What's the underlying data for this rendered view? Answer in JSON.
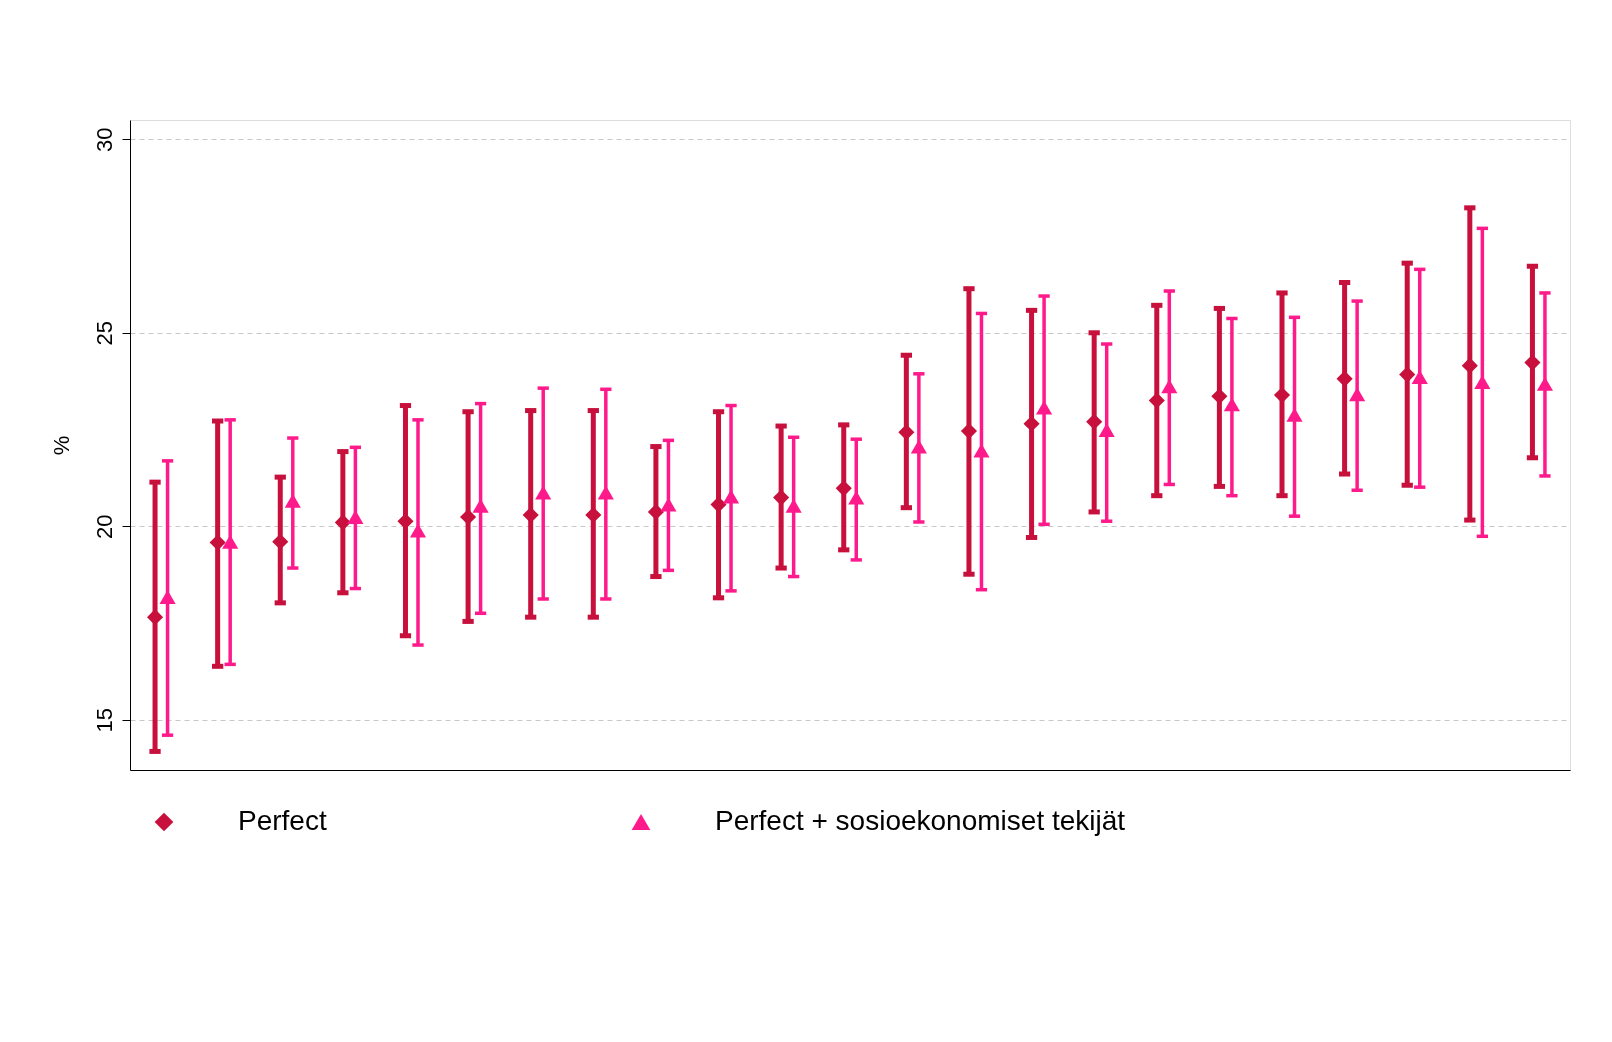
{
  "chart_data": {
    "type": "scatter",
    "ylabel": "%",
    "categories": [
      null,
      null,
      null,
      null,
      null,
      null,
      null,
      null,
      null,
      null,
      null,
      null,
      null,
      null,
      null,
      null,
      null,
      null,
      null,
      null,
      null,
      null,
      null
    ],
    "ylim": [
      13.7,
      30.5
    ],
    "yticks": [
      15,
      20,
      25,
      30
    ],
    "grid": "y",
    "legend": "bottom",
    "tick_labels": "y",
    "series": [
      {
        "name": "Perfect",
        "color": "#c8103c",
        "marker": "diamond",
        "values": [
          17.65,
          19.58,
          19.6,
          20.1,
          20.13,
          20.24,
          20.29,
          20.29,
          20.37,
          20.56,
          20.74,
          20.98,
          22.43,
          22.46,
          22.65,
          22.7,
          23.25,
          23.36,
          23.39,
          23.81,
          23.92,
          24.15,
          24.23
        ],
        "errors": [
          [
            14.18,
            21.14
          ],
          [
            16.38,
            22.72
          ],
          [
            18.02,
            21.27
          ],
          [
            18.28,
            21.93
          ],
          [
            17.17,
            23.12
          ],
          [
            17.54,
            22.96
          ],
          [
            17.65,
            22.99
          ],
          [
            17.65,
            22.99
          ],
          [
            18.7,
            22.06
          ],
          [
            18.15,
            22.96
          ],
          [
            18.92,
            22.59
          ],
          [
            19.39,
            22.62
          ],
          [
            20.48,
            24.42
          ],
          [
            18.76,
            26.14
          ],
          [
            19.71,
            25.58
          ],
          [
            20.37,
            25.0
          ],
          [
            20.79,
            25.71
          ],
          [
            21.03,
            25.63
          ],
          [
            20.79,
            26.03
          ],
          [
            21.35,
            26.3
          ],
          [
            21.06,
            26.8
          ],
          [
            20.16,
            28.23
          ],
          [
            21.77,
            26.72
          ]
        ]
      },
      {
        "name": "Perfect + sosioekonomiset tekijät",
        "color": "#ff1a8c",
        "marker": "triangle",
        "values": [
          18.17,
          19.6,
          20.66,
          20.24,
          19.89,
          20.53,
          20.87,
          20.87,
          20.56,
          20.77,
          20.53,
          20.74,
          22.06,
          21.96,
          23.07,
          22.49,
          23.62,
          23.15,
          22.88,
          23.41,
          23.86,
          23.73,
          23.68
        ],
        "errors": [
          [
            14.6,
            21.69
          ],
          [
            16.43,
            22.75
          ],
          [
            18.92,
            22.28
          ],
          [
            18.39,
            22.04
          ],
          [
            16.93,
            22.75
          ],
          [
            17.75,
            23.17
          ],
          [
            18.12,
            23.57
          ],
          [
            18.12,
            23.54
          ],
          [
            18.86,
            22.22
          ],
          [
            18.33,
            23.12
          ],
          [
            18.7,
            22.3
          ],
          [
            19.13,
            22.25
          ],
          [
            20.11,
            23.94
          ],
          [
            18.36,
            25.5
          ],
          [
            20.05,
            25.95
          ],
          [
            20.13,
            24.71
          ],
          [
            21.08,
            26.08
          ],
          [
            20.79,
            25.37
          ],
          [
            20.26,
            25.4
          ],
          [
            20.93,
            25.82
          ],
          [
            21.01,
            26.64
          ],
          [
            19.74,
            27.7
          ],
          [
            21.3,
            26.03
          ]
        ]
      }
    ]
  }
}
